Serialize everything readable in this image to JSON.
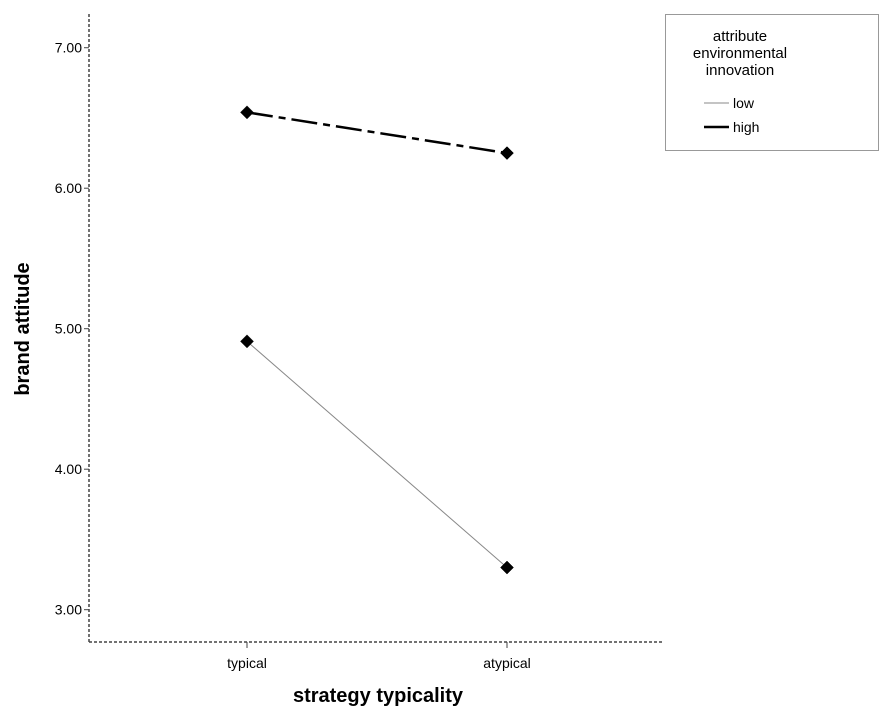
{
  "chart_data": {
    "type": "line",
    "categories": [
      "typical",
      "atypical"
    ],
    "series": [
      {
        "name": "low",
        "values": [
          4.91,
          3.3
        ],
        "line_style": "solid-thin",
        "color": "#888888"
      },
      {
        "name": "high",
        "values": [
          6.54,
          6.25
        ],
        "line_style": "dash-dot",
        "color": "#000000"
      }
    ],
    "marker": "diamond",
    "xlabel": "strategy typicality",
    "ylabel": "brand attitude",
    "ylim": [
      2.77,
      7.24
    ],
    "yticks": [
      "3.00",
      "4.00",
      "5.00",
      "6.00",
      "7.00"
    ],
    "grid": false,
    "legend": {
      "position": "top-right",
      "title_lines": [
        "attribute",
        "environmental",
        "innovation"
      ]
    }
  }
}
